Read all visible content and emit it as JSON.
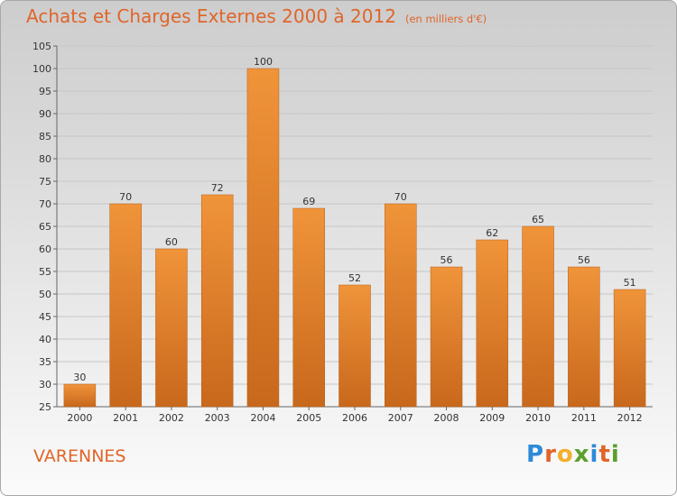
{
  "title": "Achats et Charges Externes 2000 à 2012",
  "subtitle": "(en milliers d'€)",
  "commune": "VARENNES",
  "logo": {
    "text": "Proxiti",
    "letters": [
      "P",
      "r",
      "o",
      "x",
      "i",
      "t",
      "i"
    ],
    "colors": [
      "#2d8ad8",
      "#e0652a",
      "#f2b02a",
      "#5aa02c",
      "#2d8ad8",
      "#e0652a",
      "#5aa02c"
    ]
  },
  "colors": {
    "bar": "#f0943a",
    "bar_dark": "#c8681c",
    "title": "#e0652a"
  },
  "chart_data": {
    "type": "bar",
    "title": "Achats et Charges Externes 2000 à 2012",
    "subtitle": "(en milliers d'€)",
    "categories": [
      "2000",
      "2001",
      "2002",
      "2003",
      "2004",
      "2005",
      "2006",
      "2007",
      "2008",
      "2009",
      "2010",
      "2011",
      "2012"
    ],
    "values": [
      30,
      70,
      60,
      72,
      100,
      69,
      52,
      70,
      56,
      62,
      65,
      56,
      51
    ],
    "ylim": [
      25,
      105
    ],
    "yticks": [
      25,
      30,
      35,
      40,
      45,
      50,
      55,
      60,
      65,
      70,
      75,
      80,
      85,
      90,
      95,
      100,
      105
    ],
    "grid": true,
    "legend": "none"
  }
}
